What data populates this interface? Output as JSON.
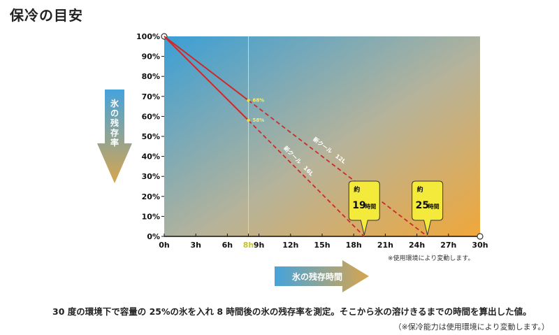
{
  "page_title": "保冷の目安",
  "y_arrow_label": "氷の残存率",
  "x_arrow_label": "氷の残存時間",
  "note_under_axis": "※使用環境により変動します。",
  "footer_text": "30 度の環境下で容量の 25%の氷を入れ 8 時間後の氷の残存率を測定。そこから氷の溶けきるまでの時間を算出した値。",
  "footer_note": "（※保冷能力は使用環境により変動します。）",
  "colors": {
    "line": "#cc2a2a",
    "highlight": "#e8e24a",
    "bubble": "#f3ea3c",
    "arrow_blue": "#4aa3d8",
    "arrow_gold": "#d6a24a"
  },
  "chart_data": {
    "type": "line",
    "x_ticks": [
      "0h",
      "3h",
      "6h",
      "8h",
      "9h",
      "12h",
      "15h",
      "18h",
      "21h",
      "24h",
      "27h",
      "30h"
    ],
    "y_ticks": [
      "0%",
      "10%",
      "20%",
      "30%",
      "40%",
      "50%",
      "60%",
      "70%",
      "80%",
      "90%",
      "100%"
    ],
    "xlim": [
      0,
      30
    ],
    "ylim": [
      0,
      100
    ],
    "highlight_x": 8,
    "highlight_label": "8h",
    "series": [
      {
        "name": "新クール　12L",
        "measured": [
          [
            0,
            100
          ],
          [
            8,
            68
          ]
        ],
        "projected": [
          [
            8,
            68
          ],
          [
            25,
            0
          ]
        ],
        "point_label": "68%",
        "bubble": {
          "prefix": "約",
          "value": "25",
          "unit": "時間"
        }
      },
      {
        "name": "新クール　16L",
        "measured": [
          [
            0,
            100
          ],
          [
            8,
            58
          ]
        ],
        "projected": [
          [
            8,
            58
          ],
          [
            19,
            0
          ]
        ],
        "point_label": "58%",
        "bubble": {
          "prefix": "約",
          "value": "19",
          "unit": "時間"
        }
      }
    ]
  }
}
